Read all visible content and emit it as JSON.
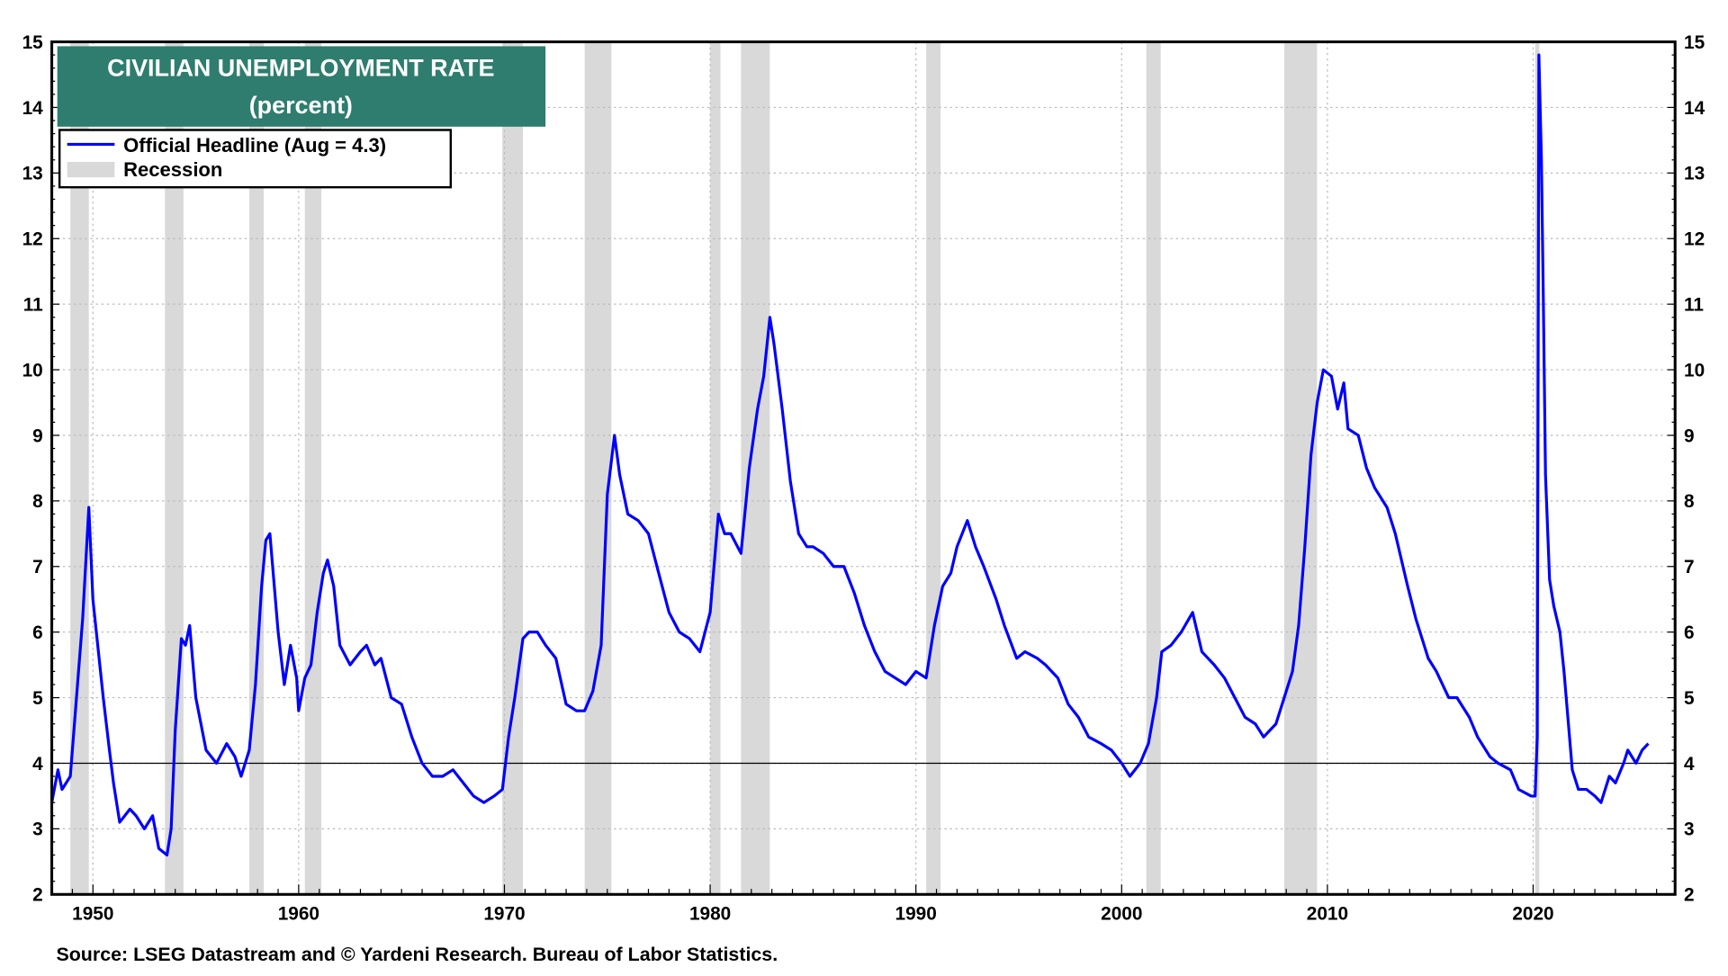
{
  "chart_data": {
    "type": "line",
    "title": "CIVILIAN UNEMPLOYMENT RATE",
    "subtitle": "(percent)",
    "xlabel": "",
    "ylabel": "",
    "xlim": [
      1948.0,
      2026.9
    ],
    "ylim": [
      2,
      15
    ],
    "grid": true,
    "legend_position": "top-left",
    "x_ticks": [
      "1950",
      "1960",
      "1970",
      "1980",
      "1990",
      "2000",
      "2010",
      "2020"
    ],
    "y_ticks": [
      "2",
      "3",
      "4",
      "5",
      "6",
      "7",
      "8",
      "9",
      "10",
      "11",
      "12",
      "13",
      "14",
      "15"
    ],
    "reference_line": 4,
    "colors": {
      "series": "#0000ff",
      "recession": "#d9d9d9",
      "title_bg": "#2e7d6e"
    },
    "legend": [
      {
        "label": "Official Headline (Aug = 4.3)",
        "type": "line"
      },
      {
        "label": "Recession",
        "type": "band"
      }
    ],
    "recessions": [
      [
        1948.9,
        1949.8
      ],
      [
        1953.5,
        1954.4
      ],
      [
        1957.6,
        1958.3
      ],
      [
        1960.3,
        1961.1
      ],
      [
        1969.9,
        1970.9
      ],
      [
        1973.9,
        1975.2
      ],
      [
        1980.0,
        1980.5
      ],
      [
        1981.5,
        1982.9
      ],
      [
        1990.5,
        1991.2
      ],
      [
        2001.2,
        2001.9
      ],
      [
        2007.9,
        2009.5
      ],
      [
        2020.1,
        2020.3
      ]
    ],
    "series": [
      {
        "name": "Official Headline (Aug = 4.3)",
        "x": [
          1948.0,
          1948.3,
          1948.5,
          1948.9,
          1949.2,
          1949.5,
          1949.8,
          1950.0,
          1950.5,
          1950.8,
          1951.0,
          1951.3,
          1951.8,
          1952.1,
          1952.5,
          1952.9,
          1953.2,
          1953.6,
          1953.8,
          1954.0,
          1954.3,
          1954.5,
          1954.7,
          1955.0,
          1955.5,
          1956.0,
          1956.5,
          1956.9,
          1957.2,
          1957.6,
          1957.9,
          1958.2,
          1958.4,
          1958.6,
          1959.0,
          1959.3,
          1959.6,
          1959.9,
          1960.0,
          1960.3,
          1960.6,
          1960.9,
          1961.2,
          1961.4,
          1961.7,
          1962.0,
          1962.5,
          1963.0,
          1963.3,
          1963.7,
          1964.0,
          1964.5,
          1965.0,
          1965.5,
          1966.0,
          1966.5,
          1967.0,
          1967.5,
          1968.0,
          1968.5,
          1969.0,
          1969.5,
          1969.9,
          1970.2,
          1970.5,
          1970.9,
          1971.2,
          1971.6,
          1972.0,
          1972.5,
          1973.0,
          1973.5,
          1973.9,
          1974.3,
          1974.7,
          1975.0,
          1975.35,
          1975.6,
          1976.0,
          1976.5,
          1977.0,
          1977.5,
          1978.0,
          1978.5,
          1979.0,
          1979.5,
          1980.0,
          1980.4,
          1980.7,
          1981.0,
          1981.5,
          1981.9,
          1982.3,
          1982.6,
          1982.9,
          1983.1,
          1983.5,
          1983.9,
          1984.3,
          1984.7,
          1985.0,
          1985.5,
          1986.0,
          1986.5,
          1987.0,
          1987.5,
          1988.0,
          1988.5,
          1989.0,
          1989.5,
          1990.0,
          1990.5,
          1990.9,
          1991.3,
          1991.7,
          1992.0,
          1992.5,
          1992.9,
          1993.3,
          1993.9,
          1994.3,
          1994.9,
          1995.3,
          1995.9,
          1996.3,
          1996.9,
          1997.4,
          1997.9,
          1998.4,
          1999.0,
          1999.5,
          2000.0,
          2000.4,
          2000.9,
          2001.3,
          2001.7,
          2001.95,
          2002.4,
          2002.9,
          2003.45,
          2003.9,
          2004.5,
          2005.0,
          2005.5,
          2006.0,
          2006.5,
          2006.9,
          2007.5,
          2007.9,
          2008.3,
          2008.6,
          2008.9,
          2009.2,
          2009.5,
          2009.8,
          2010.2,
          2010.5,
          2010.8,
          2011.0,
          2011.5,
          2011.9,
          2012.3,
          2012.9,
          2013.3,
          2013.9,
          2014.3,
          2014.9,
          2015.3,
          2015.9,
          2016.3,
          2016.9,
          2017.3,
          2017.9,
          2018.3,
          2018.9,
          2019.3,
          2019.9,
          2020.1,
          2020.2,
          2020.28,
          2020.4,
          2020.5,
          2020.6,
          2020.8,
          2021.0,
          2021.3,
          2021.5,
          2021.9,
          2022.2,
          2022.6,
          2023.0,
          2023.3,
          2023.7,
          2024.0,
          2024.4,
          2024.6,
          2025.0,
          2025.3,
          2025.6
        ],
        "y": [
          3.4,
          3.9,
          3.6,
          3.8,
          5.0,
          6.2,
          7.9,
          6.5,
          5.0,
          4.2,
          3.7,
          3.1,
          3.3,
          3.2,
          3.0,
          3.2,
          2.7,
          2.6,
          3.0,
          4.5,
          5.9,
          5.8,
          6.1,
          5.0,
          4.2,
          4.0,
          4.3,
          4.1,
          3.8,
          4.2,
          5.2,
          6.7,
          7.4,
          7.5,
          6.0,
          5.2,
          5.8,
          5.3,
          4.8,
          5.3,
          5.5,
          6.3,
          6.9,
          7.1,
          6.7,
          5.8,
          5.5,
          5.7,
          5.8,
          5.5,
          5.6,
          5.0,
          4.9,
          4.4,
          4.0,
          3.8,
          3.8,
          3.9,
          3.7,
          3.5,
          3.4,
          3.5,
          3.6,
          4.4,
          5.0,
          5.9,
          6.0,
          6.0,
          5.8,
          5.6,
          4.9,
          4.8,
          4.8,
          5.1,
          5.8,
          8.1,
          9.0,
          8.4,
          7.8,
          7.7,
          7.5,
          6.9,
          6.3,
          6.0,
          5.9,
          5.7,
          6.3,
          7.8,
          7.5,
          7.5,
          7.2,
          8.5,
          9.4,
          9.9,
          10.8,
          10.4,
          9.4,
          8.3,
          7.5,
          7.3,
          7.3,
          7.2,
          7.0,
          7.0,
          6.6,
          6.1,
          5.7,
          5.4,
          5.3,
          5.2,
          5.4,
          5.3,
          6.1,
          6.7,
          6.9,
          7.3,
          7.7,
          7.3,
          7.0,
          6.5,
          6.1,
          5.6,
          5.7,
          5.6,
          5.5,
          5.3,
          4.9,
          4.7,
          4.4,
          4.3,
          4.2,
          4.0,
          3.8,
          4.0,
          4.3,
          5.0,
          5.7,
          5.8,
          6.0,
          6.3,
          5.7,
          5.5,
          5.3,
          5.0,
          4.7,
          4.6,
          4.4,
          4.6,
          5.0,
          5.4,
          6.1,
          7.3,
          8.7,
          9.5,
          10.0,
          9.9,
          9.4,
          9.8,
          9.1,
          9.0,
          8.5,
          8.2,
          7.9,
          7.5,
          6.7,
          6.2,
          5.6,
          5.4,
          5.0,
          5.0,
          4.7,
          4.4,
          4.1,
          4.0,
          3.9,
          3.6,
          3.5,
          3.5,
          4.4,
          14.8,
          13.2,
          11.0,
          8.4,
          6.8,
          6.4,
          6.0,
          5.4,
          3.9,
          3.6,
          3.6,
          3.5,
          3.4,
          3.8,
          3.7,
          4.0,
          4.2,
          4.0,
          4.2,
          4.3
        ]
      }
    ],
    "source": "Source: LSEG Datastream and © Yardeni Research. Bureau of Labor Statistics."
  }
}
